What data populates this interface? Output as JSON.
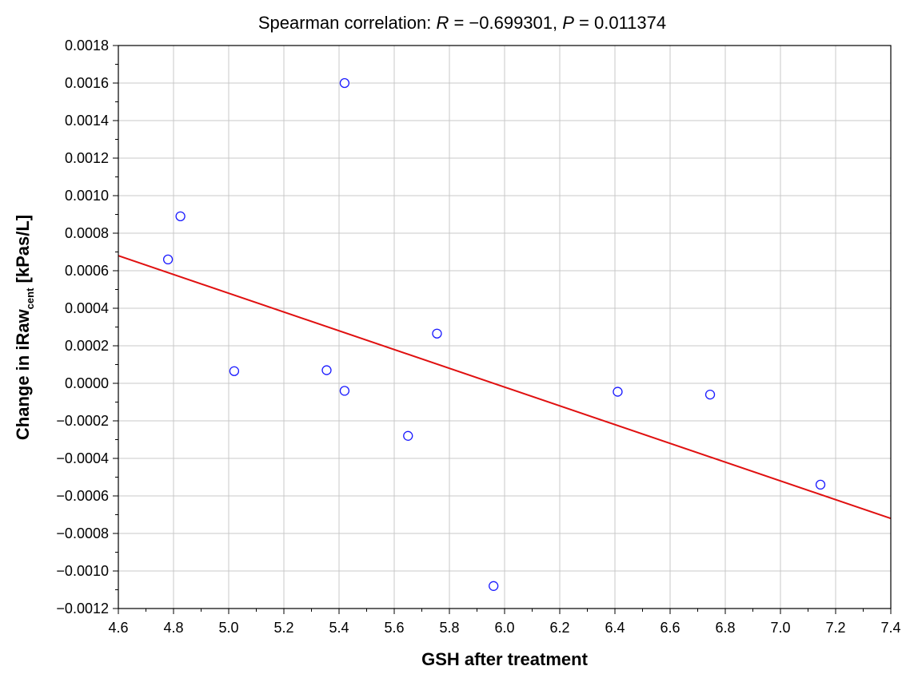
{
  "chart_data": {
    "type": "scatter",
    "title_prefix": "Spearman correlation: ",
    "title_r_symbol": "R",
    "title_r_value": " = −0.699301, ",
    "title_p_symbol": "P",
    "title_p_value": " = 0.011374",
    "xlabel": "GSH after treatment",
    "ylabel_main": "Change in iRaw",
    "ylabel_subscript": "cent",
    "ylabel_unit": " [kPas/L]",
    "xlim": [
      4.6,
      7.4
    ],
    "ylim": [
      -0.0012,
      0.0018
    ],
    "x_ticks": [
      4.6,
      4.8,
      5.0,
      5.2,
      5.4,
      5.6,
      5.8,
      6.0,
      6.2,
      6.4,
      6.6,
      6.8,
      7.0,
      7.2,
      7.4
    ],
    "x_tick_labels": [
      "4.6",
      "4.8",
      "5.0",
      "5.2",
      "5.4",
      "5.6",
      "5.8",
      "6.0",
      "6.2",
      "6.4",
      "6.6",
      "6.8",
      "7.0",
      "7.2",
      "7.4"
    ],
    "y_ticks": [
      -0.0012,
      -0.001,
      -0.0008,
      -0.0006,
      -0.0004,
      -0.0002,
      0,
      0.0002,
      0.0004,
      0.0006,
      0.0008,
      0.001,
      0.0012,
      0.0014,
      0.0016,
      0.0018
    ],
    "y_tick_labels": [
      "−0.0012",
      "−0.0010",
      "−0.0008",
      "−0.0006",
      "−0.0004",
      "−0.0002",
      "0.0000",
      "0.0002",
      "0.0004",
      "0.0006",
      "0.0008",
      "0.0010",
      "0.0012",
      "0.0014",
      "0.0016",
      "0.0018"
    ],
    "grid": true,
    "points": [
      {
        "x": 4.78,
        "y": 0.00066
      },
      {
        "x": 4.825,
        "y": 0.00089
      },
      {
        "x": 5.02,
        "y": 6.5e-05
      },
      {
        "x": 5.355,
        "y": 7e-05
      },
      {
        "x": 5.42,
        "y": 0.0016
      },
      {
        "x": 5.42,
        "y": -4e-05
      },
      {
        "x": 5.65,
        "y": -0.00028
      },
      {
        "x": 5.755,
        "y": 0.000265
      },
      {
        "x": 5.96,
        "y": -0.00108
      },
      {
        "x": 6.41,
        "y": -4.5e-05
      },
      {
        "x": 6.745,
        "y": -6e-05
      },
      {
        "x": 7.145,
        "y": -0.00054
      }
    ],
    "fit_line": {
      "x": [
        4.6,
        7.4
      ],
      "y": [
        0.00068,
        -0.00072
      ]
    },
    "colors": {
      "points": "#1a1aff",
      "fit_line": "#e01010",
      "grid": "#c8c8c8"
    }
  }
}
